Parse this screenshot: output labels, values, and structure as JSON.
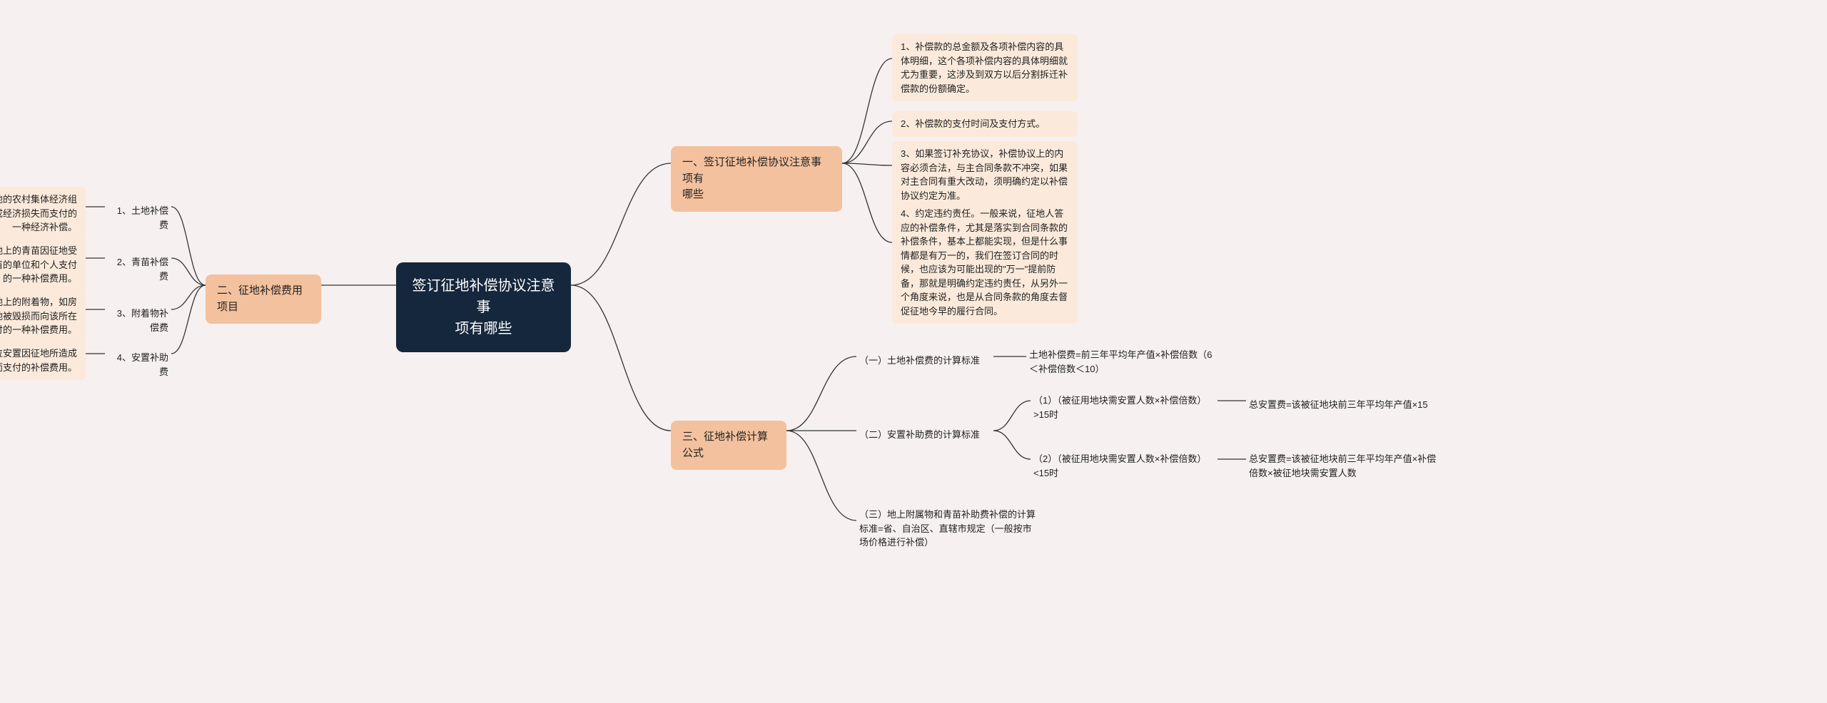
{
  "colors": {
    "background": "#f7f0f0",
    "center_bg": "#15273c",
    "center_fg": "#ffffff",
    "branch_bg": "#f3c19d",
    "leaf_bg": "#fbeadb",
    "connector": "#333333"
  },
  "center": {
    "text": "签订征地补偿协议注意事\n项有哪些"
  },
  "branch1": {
    "title": "一、签订征地补偿协议注意事项有\n哪些",
    "items": [
      "1、补偿款的总金额及各项补偿内容的具体明细，这个各项补偿内容的具体明细就尤为重要，这涉及到双方以后分割拆迁补偿款的份额确定。",
      "2、补偿款的支付时间及支付方式。",
      "3、如果签订补充协议，补偿协议上的内容必须合法，与主合同条款不冲突，如果对主合同有重大改动，须明确约定以补偿协议约定为准。",
      "4、约定违约责任。一般来说，征地人答应的补偿条件，尤其是落实到合同条款的补偿条件，基本上都能实现，但是什么事情都是有万一的，我们在签订合同的时候，也应该为可能出现的\"万一\"提前防备，那就是明确约定违约责任，从另外一个角度来说，也是从合同条款的角度去督促征地今早的履行合同。"
    ]
  },
  "branch2": {
    "title": "二、征地补偿费用项目",
    "items": [
      {
        "label": "1、土地补偿费",
        "desc": "用地单位依法对被征地的农村集体经济组织因其土地被征用造成经济损失而支付的一种经济补偿。"
      },
      {
        "label": "2、青苗补偿费",
        "desc": "用地单位对被征用土地上的青苗因征地受到毁损，向种植该青苗的单位和个人支付的一种补偿费用。"
      },
      {
        "label": "3、附着物补偿费",
        "desc": "用地单位对被征用土地上的附着物，如房屋、其它设施，因征地被毁损而向该所在人支付的一种补偿费用。"
      },
      {
        "label": "4、安置补助费",
        "desc": "用地单位对被征地单位安置因征地所造成的富余劳动力而支付的补偿费用。"
      }
    ]
  },
  "branch3": {
    "title": "三、征地补偿计算公式",
    "s1": {
      "label": "（一）土地补偿费的计算标准",
      "formula": "土地补偿费=前三年平均年产值×补偿倍数（6＜补偿倍数＜10）"
    },
    "s2": {
      "label": "（二）安置补助费的计算标准",
      "c1": {
        "cond": "（1）（被征用地块需安置人数×补偿倍数）>15时",
        "res": "总安置费=该被征地块前三年平均年产值×15"
      },
      "c2": {
        "cond": "（2）（被征用地块需安置人数×补偿倍数）<15时",
        "res": "总安置费=该被征地块前三年平均年产值×补偿倍数×被征地块需安置人数"
      }
    },
    "s3": {
      "label": "（三）地上附属物和青苗补助费补偿的计算标准=省、自治区、直辖市规定（一般按市场价格进行补偿）"
    }
  }
}
